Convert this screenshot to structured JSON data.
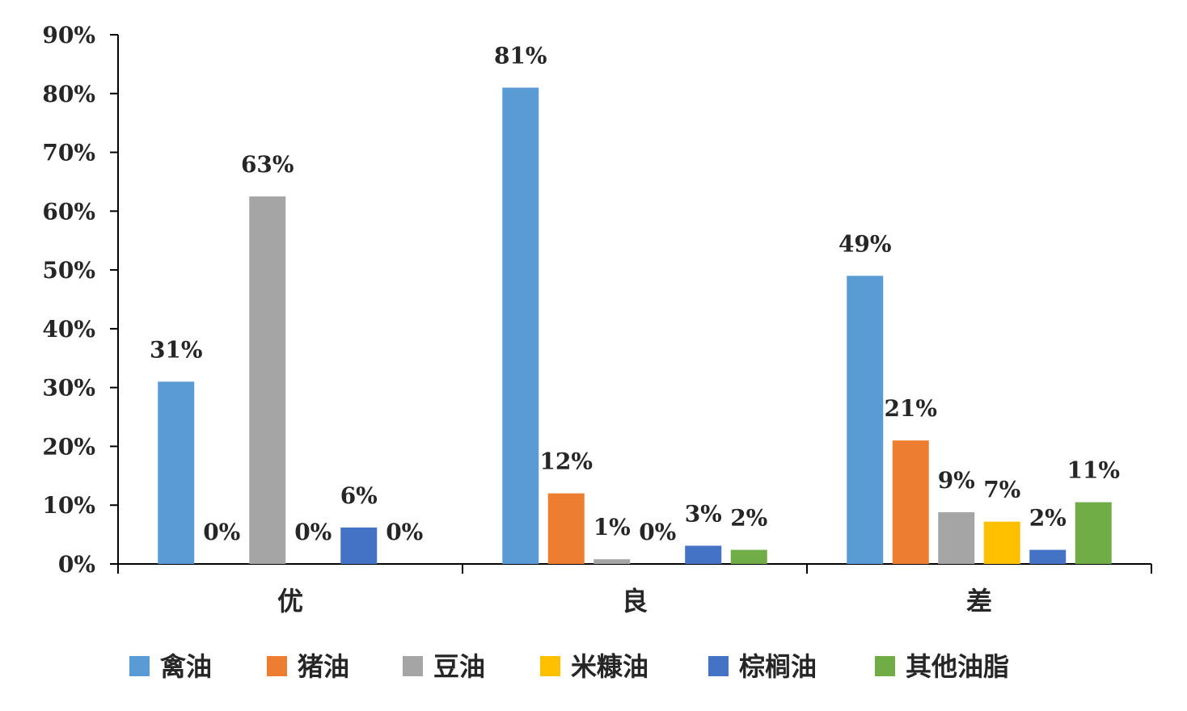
{
  "chart_data": {
    "type": "bar",
    "categories": [
      "优",
      "良",
      "差"
    ],
    "series": [
      {
        "name": "禽油",
        "values": [
          31,
          81,
          49
        ],
        "labels": [
          "31%",
          "81%",
          "49%"
        ],
        "color": "#5B9BD5"
      },
      {
        "name": "猪油",
        "values": [
          0,
          12,
          21
        ],
        "labels": [
          "0%",
          "12%",
          "21%"
        ],
        "color": "#ED7D31"
      },
      {
        "name": "豆油",
        "values": [
          62.5,
          0.8,
          8.8
        ],
        "labels": [
          "63%",
          "1%",
          "9%"
        ],
        "color": "#A5A5A5"
      },
      {
        "name": "米糠油",
        "values": [
          0,
          0,
          7.2
        ],
        "labels": [
          "0%",
          "0%",
          "7%"
        ],
        "color": "#FFC000"
      },
      {
        "name": "棕榈油",
        "values": [
          6.2,
          3.1,
          2.4
        ],
        "labels": [
          "6%",
          "3%",
          "2%"
        ],
        "color": "#4472C4"
      },
      {
        "name": "其他油脂",
        "values": [
          0,
          2.4,
          10.5
        ],
        "labels": [
          "0%",
          "2%",
          "11%"
        ],
        "color": "#70AD47"
      }
    ],
    "y_ticks": [
      "0%",
      "10%",
      "20%",
      "30%",
      "40%",
      "50%",
      "60%",
      "70%",
      "80%",
      "90%"
    ],
    "ylim": [
      0,
      90
    ],
    "title": "",
    "xlabel": "",
    "ylabel": "",
    "grid": false,
    "legend": "bottom"
  }
}
